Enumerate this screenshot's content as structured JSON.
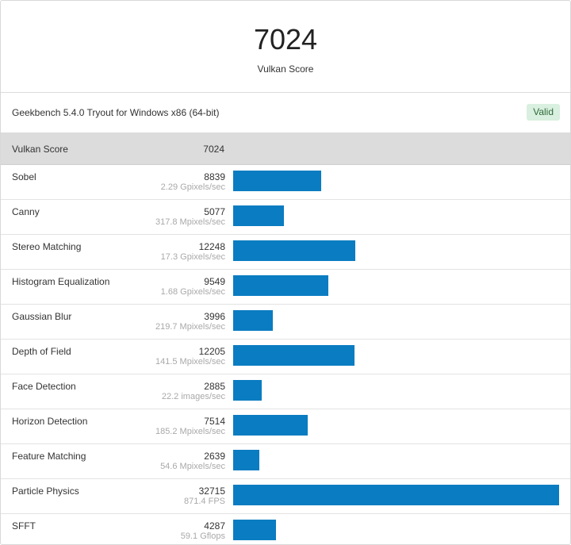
{
  "header": {
    "score": "7024",
    "score_label": "Vulkan Score"
  },
  "info": {
    "text": "Geekbench 5.4.0 Tryout for Windows x86 (64-bit)",
    "badge": "Valid"
  },
  "summary": {
    "name": "Vulkan Score",
    "value": "7024"
  },
  "colors": {
    "bar": "#0a7cc1",
    "badge_bg": "#d9efdf"
  },
  "max_score": 32715,
  "rows": [
    {
      "name": "Sobel",
      "score": "8839",
      "unit": "2.29 Gpixels/sec",
      "value": 8839
    },
    {
      "name": "Canny",
      "score": "5077",
      "unit": "317.8 Mpixels/sec",
      "value": 5077
    },
    {
      "name": "Stereo Matching",
      "score": "12248",
      "unit": "17.3 Gpixels/sec",
      "value": 12248
    },
    {
      "name": "Histogram Equalization",
      "score": "9549",
      "unit": "1.68 Gpixels/sec",
      "value": 9549
    },
    {
      "name": "Gaussian Blur",
      "score": "3996",
      "unit": "219.7 Mpixels/sec",
      "value": 3996
    },
    {
      "name": "Depth of Field",
      "score": "12205",
      "unit": "141.5 Mpixels/sec",
      "value": 12205
    },
    {
      "name": "Face Detection",
      "score": "2885",
      "unit": "22.2 images/sec",
      "value": 2885
    },
    {
      "name": "Horizon Detection",
      "score": "7514",
      "unit": "185.2 Mpixels/sec",
      "value": 7514
    },
    {
      "name": "Feature Matching",
      "score": "2639",
      "unit": "54.6 Mpixels/sec",
      "value": 2639
    },
    {
      "name": "Particle Physics",
      "score": "32715",
      "unit": "871.4 FPS",
      "value": 32715
    },
    {
      "name": "SFFT",
      "score": "4287",
      "unit": "59.1 Gflops",
      "value": 4287
    }
  ]
}
